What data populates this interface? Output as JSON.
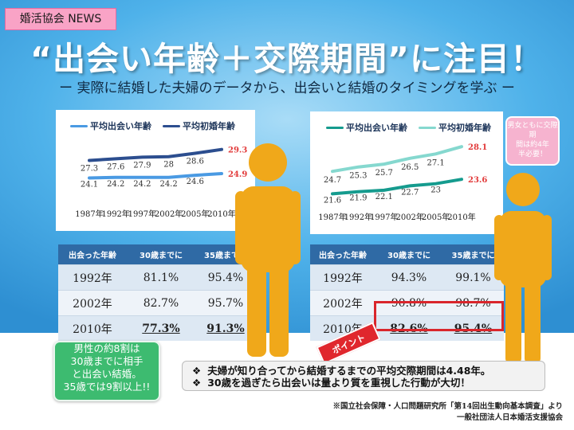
{
  "badge": "婚活協会 NEWS",
  "title": "“出会い年齢＋交際期間”に注目！",
  "subtitle": "ー 実際に結婚した夫婦のデータから、出会いと結婚のタイミングを学ぶ ー",
  "chart_data": [
    {
      "type": "line",
      "categories": [
        "1987年",
        "1992年",
        "1997年",
        "2002年",
        "2005年",
        "2010年"
      ],
      "series": [
        {
          "name": "平均出会い年齢",
          "values": [
            24.1,
            24.2,
            24.2,
            24.2,
            24.6,
            24.9
          ],
          "color": "#4a9ae3"
        },
        {
          "name": "平均初婚年齢",
          "values": [
            27.3,
            27.6,
            27.9,
            28,
            28.6,
            29.3
          ],
          "color": "#2c4e8f"
        }
      ],
      "last_labels": [
        "24.9",
        "29.3"
      ]
    },
    {
      "type": "line",
      "categories": [
        "1987年",
        "1992年",
        "1997年",
        "2002年",
        "2005年",
        "2010年"
      ],
      "series": [
        {
          "name": "平均出会い年齢",
          "values": [
            21.6,
            21.9,
            22.1,
            22.7,
            23,
            23.6
          ],
          "color": "#159b8e"
        },
        {
          "name": "平均初婚年齢",
          "values": [
            24.7,
            25.3,
            25.7,
            26.5,
            27.1,
            28.1
          ],
          "color": "#85d8cf"
        }
      ],
      "last_labels": [
        "23.6",
        "28.1"
      ]
    },
    {
      "type": "table",
      "headers": [
        "出会った年齢",
        "30歳までに",
        "35歳までに"
      ],
      "rows": [
        [
          "1992年",
          "81.1%",
          "95.4%"
        ],
        [
          "2002年",
          "82.7%",
          "95.7%"
        ],
        [
          "2010年",
          "77.3%",
          "91.3%"
        ]
      ]
    },
    {
      "type": "table",
      "headers": [
        "出会った年齢",
        "30歳までに",
        "35歳までに"
      ],
      "rows": [
        [
          "1992年",
          "94.3%",
          "99.1%"
        ],
        [
          "2002年",
          "90.8%",
          "98.7%"
        ],
        [
          "2010年",
          "82.6%",
          "95.4%"
        ]
      ]
    }
  ],
  "notes": {
    "male": [
      "男性の約8割は",
      "30歳までに相手",
      "と出会い結婚。",
      "35歳では9割以上!!"
    ],
    "female": [
      "男女ともに交際期",
      "間は約4年",
      "半必要！"
    ],
    "point": "ポイント"
  },
  "bullets": [
    "夫婦が知り合ってから結婚するまでの平均交際期間は4.48年。",
    "30歳を過ぎたら出会いは量より質を重視した行動が大切！"
  ],
  "bullet_icon": "❖",
  "source": [
    "※国立社会保障・人口問題研究所「第14回出生動向基本調査」より",
    "一般社団法人日本婚活支援協会"
  ],
  "colors": {
    "figure": "#f0a81a",
    "highlight": "#e23c3c",
    "table_header": "#2f6aa5"
  }
}
